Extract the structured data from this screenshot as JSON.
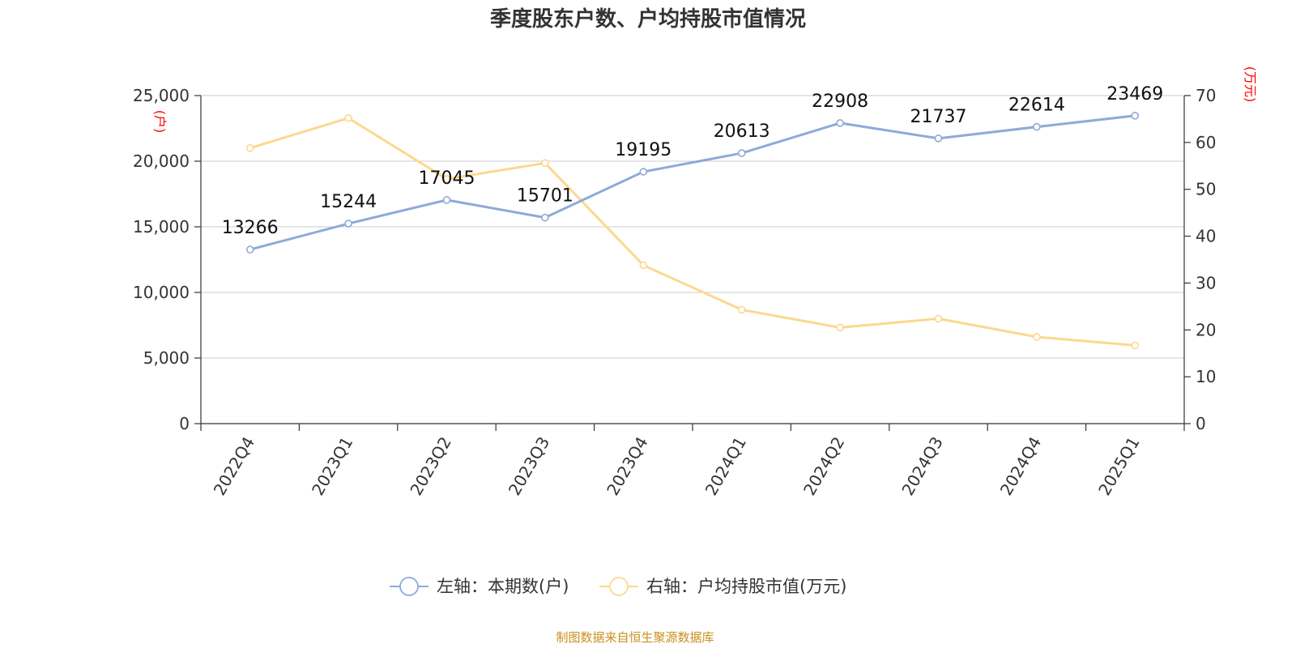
{
  "chart_data": {
    "type": "line",
    "title": "季度股东户数、户均持股市值情况",
    "categories": [
      "2022Q4",
      "2023Q1",
      "2023Q2",
      "2023Q3",
      "2023Q4",
      "2024Q1",
      "2024Q2",
      "2024Q3",
      "2024Q4",
      "2025Q1"
    ],
    "y_left": {
      "unit": "(户)",
      "min": 0,
      "max": 25000,
      "ticks": [
        "0",
        "5,000",
        "10,000",
        "15,000",
        "20,000",
        "25,000"
      ],
      "tick_values": [
        0,
        5000,
        10000,
        15000,
        20000,
        25000
      ]
    },
    "y_right": {
      "unit": "(万元)",
      "min": 0,
      "max": 70,
      "ticks": [
        "0",
        "10",
        "20",
        "30",
        "40",
        "50",
        "60",
        "70"
      ],
      "tick_values": [
        0,
        10,
        20,
        30,
        40,
        50,
        60,
        70
      ]
    },
    "series": [
      {
        "name": "左轴：本期数(户)",
        "axis": "left",
        "color": "#8eaad8",
        "values": [
          13266,
          15244,
          17045,
          15701,
          19195,
          20613,
          22908,
          21737,
          22614,
          23469
        ],
        "labels": [
          "13266",
          "15244",
          "17045",
          "15701",
          "19195",
          "20613",
          "22908",
          "21737",
          "22614",
          "23469"
        ]
      },
      {
        "name": "右轴：户均持股市值(万元)",
        "axis": "right",
        "color": "#fcd88e",
        "values": [
          58.8,
          65.2,
          52.2,
          55.6,
          33.8,
          24.3,
          20.5,
          22.4,
          18.5,
          16.7
        ]
      }
    ],
    "grid": true,
    "legend": "bottom",
    "source": "制图数据来自恒生聚源数据库"
  }
}
